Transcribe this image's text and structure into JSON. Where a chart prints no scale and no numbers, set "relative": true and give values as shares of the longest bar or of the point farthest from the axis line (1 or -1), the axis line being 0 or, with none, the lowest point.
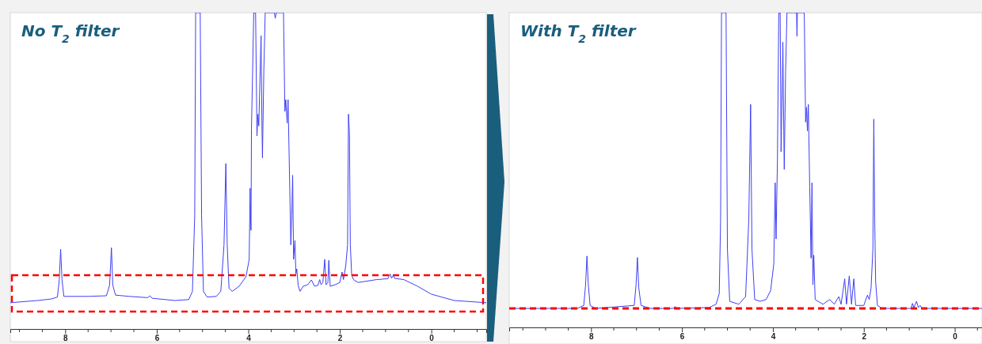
{
  "chart_data": [
    {
      "type": "line",
      "title": "No T$_{2}$ filter",
      "relative": true,
      "xlim": [
        9.2,
        -1.2
      ],
      "xticks": [
        8,
        6,
        4,
        2,
        0
      ],
      "series": [
        {
          "color": "#3f3ff5",
          "x": [
            9.2,
            8.6,
            8.3,
            8.17,
            8.13,
            8.1,
            8.07,
            8.03,
            7.5,
            7.1,
            7.03,
            6.99,
            6.96,
            6.9,
            6.6,
            6.2,
            6.15,
            6.1,
            5.6,
            5.3,
            5.22,
            5.17,
            5.15,
            5.05,
            5.02,
            4.98,
            4.9,
            4.7,
            4.6,
            4.53,
            4.49,
            4.46,
            4.42,
            4.35,
            4.2,
            4.05,
            3.98,
            3.96,
            3.95,
            3.94,
            3.93,
            3.88,
            3.84,
            3.81,
            3.79,
            3.77,
            3.74,
            3.72,
            3.7,
            3.69,
            3.66,
            3.63,
            3.43,
            3.41,
            3.39,
            3.23,
            3.2,
            3.18,
            3.15,
            3.13,
            3.1,
            3.07,
            3.05,
            3.03,
            3.01,
            2.98,
            2.96,
            2.94,
            2.91,
            2.87,
            2.8,
            2.7,
            2.62,
            2.55,
            2.48,
            2.44,
            2.41,
            2.37,
            2.33,
            2.3,
            2.26,
            2.24,
            2.21,
            2.1,
            2,
            1.95,
            1.92,
            1.87,
            1.83,
            1.81,
            1.79,
            1.77,
            1.74,
            1.7,
            1.6,
            1.2,
            0.95,
            0.9,
            0.87,
            0.83,
            0.8,
            0.6,
            0.3,
            0,
            -0.5,
            -1.2
          ],
          "values": [
            0.083,
            0.09,
            0.095,
            0.101,
            0.156,
            0.252,
            0.156,
            0.103,
            0.103,
            0.105,
            0.138,
            0.257,
            0.138,
            0.107,
            0.103,
            0.099,
            0.105,
            0.097,
            0.09,
            0.093,
            0.119,
            0.358,
            1,
            1,
            0.358,
            0.119,
            0.101,
            0.103,
            0.119,
            0.266,
            0.523,
            0.266,
            0.128,
            0.119,
            0.135,
            0.165,
            0.22,
            0.445,
            0.358,
            0.312,
            0.633,
            1,
            1,
            0.61,
            0.679,
            0.642,
            0.817,
            0.927,
            0.633,
            0.541,
            0.817,
            1,
            1,
            0.982,
            1,
            1,
            0.688,
            0.725,
            0.651,
            0.725,
            0.495,
            0.266,
            0.358,
            0.486,
            0.22,
            0.28,
            0.174,
            0.19,
            0.138,
            0.119,
            0.135,
            0.14,
            0.155,
            0.135,
            0.138,
            0.156,
            0.14,
            0.147,
            0.22,
            0.14,
            0.147,
            0.217,
            0.135,
            0.14,
            0.147,
            0.18,
            0.156,
            0.2,
            0.266,
            0.679,
            0.619,
            0.266,
            0.17,
            0.156,
            0.147,
            0.156,
            0.159,
            0.174,
            0.16,
            0.17,
            0.16,
            0.156,
            0.135,
            0.11,
            0.09,
            0.083
          ]
        }
      ]
    },
    {
      "type": "line",
      "title": "With T$_{2}$ filter",
      "relative": true,
      "xlim": [
        9.8,
        -0.6
      ],
      "xticks": [
        8,
        6,
        4,
        2,
        0
      ],
      "ref_lines": [
        {
          "axis": "y",
          "value": 0,
          "color": "#ff0000",
          "line_style": "dashed"
        }
      ],
      "series": [
        {
          "color": "#3f3ff5",
          "x": [
            9.8,
            8.3,
            8.16,
            8.12,
            8.09,
            8.06,
            8.02,
            7.9,
            7.05,
            7.01,
            6.98,
            6.95,
            6.9,
            6.7,
            6.2,
            6.15,
            6.1,
            5.4,
            5.25,
            5.18,
            5.15,
            5.13,
            5.03,
            5,
            4.95,
            4.75,
            4.6,
            4.53,
            4.49,
            4.46,
            4.4,
            4.28,
            4.15,
            4.05,
            3.98,
            3.95,
            3.93,
            3.9,
            3.87,
            3.84,
            3.82,
            3.8,
            3.78,
            3.76,
            3.75,
            3.72,
            3.69,
            3.48,
            3.47,
            3.46,
            3.31,
            3.28,
            3.26,
            3.24,
            3.22,
            3.19,
            3.16,
            3.14,
            3.12,
            3.1,
            3.07,
            2.9,
            2.75,
            2.65,
            2.55,
            2.5,
            2.42,
            2.38,
            2.32,
            2.27,
            2.22,
            2.18,
            2,
            1.92,
            1.88,
            1.84,
            1.8,
            1.78,
            1.76,
            1.74,
            1.7,
            1.6,
            0.96,
            0.93,
            0.9,
            0.84,
            0.8,
            0.76,
            0.72,
            -0.6
          ],
          "values": [
            0,
            0,
            0.01,
            0.08,
            0.177,
            0.08,
            0.01,
            0,
            0.01,
            0.08,
            0.172,
            0.07,
            0.01,
            0,
            0,
            0.006,
            0,
            0.003,
            0.014,
            0.05,
            0.3,
            1,
            1,
            0.2,
            0.024,
            0.014,
            0.04,
            0.3,
            0.69,
            0.2,
            0.03,
            0.024,
            0.03,
            0.06,
            0.15,
            0.425,
            0.235,
            0.5,
            1,
            1,
            0.53,
            0.7,
            0.9,
            0.6,
            0.47,
            0.8,
            1,
            1,
            0.92,
            1,
            1,
            0.63,
            0.68,
            0.6,
            0.69,
            0.41,
            0.17,
            0.425,
            0.08,
            0.18,
            0.03,
            0.014,
            0.03,
            0.014,
            0.04,
            0.014,
            0.1,
            0.014,
            0.11,
            0.014,
            0.1,
            0.01,
            0.01,
            0.045,
            0.03,
            0.07,
            0.2,
            0.64,
            0.3,
            0.09,
            0.01,
            0,
            0,
            0.017,
            0.003,
            0.024,
            0.003,
            0.01,
            0,
            0
          ]
        }
      ]
    }
  ]
}
